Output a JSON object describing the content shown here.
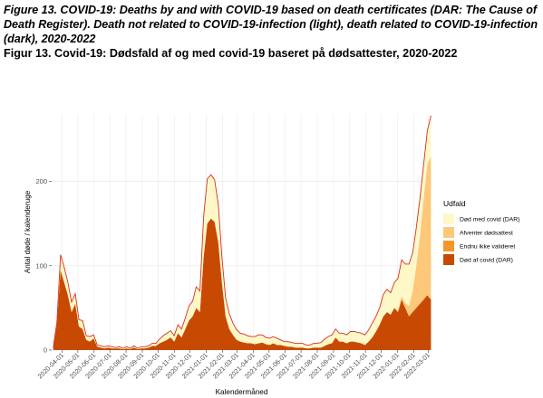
{
  "caption": {
    "english": "Figure 13. COVID-19: Deaths by and with COVID-19 based on death certificates (DAR: The Cause of Death Register). Death not related to COVID-19-infection (light), death related to COVID-19-infection (dark), 2020-2022",
    "danish": "Figur 13. Covid-19: Dødsfald af og med covid-19 baseret på dødsattester, 2020-2022"
  },
  "chart_data": {
    "type": "area",
    "stacked": true,
    "xlabel": "Kalendermåned",
    "ylabel": "Antal døde / kalenderuge",
    "ylim": [
      0,
      280
    ],
    "yticks": [
      0,
      100,
      200
    ],
    "grid": true,
    "legend_position": "right",
    "legend_title": "Udfald",
    "x_tick_labels": [
      "2020-04-01",
      "2020-05-01",
      "2020-06-01",
      "2020-07-01",
      "2020-08-01",
      "2020-09-01",
      "2020-10-01",
      "2020-11-01",
      "2020-12-01",
      "2021-01-01",
      "2021-02-01",
      "2021-03-01",
      "2021-04-01",
      "2021-05-01",
      "2021-06-01",
      "2021-07-01",
      "2021-08-01",
      "2021-09-01",
      "2021-10-01",
      "2021-11-01",
      "2021-12-01",
      "2022-01-01",
      "2022-02-01",
      "2022-03-01"
    ],
    "x": [
      "2020-03-15",
      "2020-03-22",
      "2020-03-29",
      "2020-04-05",
      "2020-04-12",
      "2020-04-19",
      "2020-04-26",
      "2020-05-03",
      "2020-05-10",
      "2020-05-17",
      "2020-05-24",
      "2020-05-31",
      "2020-06-07",
      "2020-06-14",
      "2020-06-21",
      "2020-06-28",
      "2020-07-05",
      "2020-07-12",
      "2020-07-19",
      "2020-07-26",
      "2020-08-02",
      "2020-08-09",
      "2020-08-16",
      "2020-08-23",
      "2020-08-30",
      "2020-09-06",
      "2020-09-13",
      "2020-09-20",
      "2020-09-27",
      "2020-10-04",
      "2020-10-11",
      "2020-10-18",
      "2020-10-25",
      "2020-11-01",
      "2020-11-08",
      "2020-11-15",
      "2020-11-22",
      "2020-11-29",
      "2020-12-06",
      "2020-12-13",
      "2020-12-20",
      "2020-12-27",
      "2021-01-03",
      "2021-01-10",
      "2021-01-17",
      "2021-01-24",
      "2021-01-31",
      "2021-02-07",
      "2021-02-14",
      "2021-02-21",
      "2021-02-28",
      "2021-03-07",
      "2021-03-14",
      "2021-03-21",
      "2021-03-28",
      "2021-04-04",
      "2021-04-11",
      "2021-04-18",
      "2021-04-25",
      "2021-05-02",
      "2021-05-09",
      "2021-05-16",
      "2021-05-23",
      "2021-05-30",
      "2021-06-06",
      "2021-06-13",
      "2021-06-20",
      "2021-06-27",
      "2021-07-04",
      "2021-07-11",
      "2021-07-18",
      "2021-07-25",
      "2021-08-01",
      "2021-08-08",
      "2021-08-15",
      "2021-08-22",
      "2021-08-29",
      "2021-09-05",
      "2021-09-12",
      "2021-09-19",
      "2021-09-26",
      "2021-10-03",
      "2021-10-10",
      "2021-10-17",
      "2021-10-24",
      "2021-10-31",
      "2021-11-07",
      "2021-11-14",
      "2021-11-21",
      "2021-11-28",
      "2021-12-05",
      "2021-12-12",
      "2021-12-19",
      "2021-12-26",
      "2022-01-02",
      "2022-01-09",
      "2022-01-16",
      "2022-01-23",
      "2022-01-30",
      "2022-02-06",
      "2022-02-13",
      "2022-02-20",
      "2022-02-27",
      "2022-03-06"
    ],
    "series": [
      {
        "name": "Død af covid (DAR)",
        "color": "#c84a02",
        "values": [
          3,
          30,
          95,
          80,
          65,
          45,
          55,
          28,
          25,
          12,
          10,
          14,
          4,
          3,
          2,
          3,
          2,
          2,
          2,
          1,
          2,
          1,
          3,
          1,
          2,
          2,
          3,
          5,
          5,
          8,
          10,
          12,
          15,
          10,
          20,
          15,
          25,
          35,
          40,
          50,
          45,
          110,
          150,
          156,
          152,
          128,
          80,
          40,
          25,
          18,
          12,
          10,
          9,
          8,
          8,
          7,
          8,
          9,
          7,
          6,
          8,
          6,
          6,
          5,
          4,
          4,
          3,
          3,
          3,
          2,
          2,
          3,
          3,
          3,
          5,
          7,
          8,
          15,
          10,
          10,
          8,
          10,
          10,
          9,
          8,
          6,
          10,
          15,
          22,
          30,
          40,
          45,
          42,
          50,
          45,
          60,
          50,
          40,
          45,
          50,
          55,
          60,
          65,
          60
        ]
      },
      {
        "name": "Endnu ikke valideret",
        "color": "#f4962a",
        "values": [
          0,
          0,
          0,
          0,
          0,
          0,
          0,
          0,
          0,
          0,
          0,
          0,
          0,
          0,
          0,
          0,
          0,
          0,
          0,
          0,
          0,
          0,
          0,
          0,
          0,
          0,
          0,
          0,
          0,
          0,
          0,
          0,
          0,
          0,
          0,
          0,
          0,
          0,
          0,
          0,
          0,
          0,
          0,
          0,
          0,
          0,
          0,
          0,
          0,
          0,
          0,
          0,
          0,
          0,
          0,
          0,
          0,
          0,
          0,
          0,
          0,
          0,
          0,
          0,
          0,
          0,
          0,
          0,
          0,
          0,
          0,
          0,
          0,
          0,
          0,
          0,
          0,
          0,
          0,
          0,
          0,
          0,
          0,
          0,
          0,
          0,
          0,
          0,
          0,
          0,
          0,
          0,
          0,
          0,
          0,
          0,
          0,
          0,
          0,
          0,
          0,
          0,
          0,
          0
        ]
      },
      {
        "name": "Afventer dødsattest",
        "color": "#fdc87a",
        "values": [
          0,
          0,
          0,
          0,
          0,
          0,
          0,
          0,
          0,
          0,
          0,
          0,
          0,
          0,
          0,
          0,
          0,
          0,
          0,
          0,
          0,
          0,
          0,
          0,
          0,
          0,
          0,
          0,
          0,
          0,
          0,
          0,
          0,
          0,
          0,
          0,
          0,
          0,
          0,
          0,
          0,
          0,
          0,
          0,
          0,
          0,
          0,
          0,
          0,
          0,
          0,
          0,
          0,
          0,
          0,
          0,
          0,
          0,
          0,
          0,
          0,
          0,
          0,
          0,
          0,
          0,
          0,
          0,
          0,
          0,
          0,
          0,
          0,
          0,
          0,
          0,
          0,
          0,
          0,
          0,
          0,
          0,
          0,
          0,
          0,
          0,
          0,
          0,
          0,
          0,
          0,
          0,
          0,
          0,
          2,
          4,
          6,
          12,
          25,
          50,
          80,
          120,
          155,
          170
        ]
      },
      {
        "name": "Død med covid (DAR)",
        "color": "#fef7c8",
        "values": [
          0,
          3,
          18,
          18,
          15,
          12,
          12,
          8,
          10,
          5,
          6,
          4,
          2,
          2,
          2,
          2,
          2,
          1,
          2,
          1,
          2,
          1,
          2,
          1,
          2,
          2,
          2,
          3,
          3,
          5,
          7,
          8,
          8,
          7,
          10,
          10,
          13,
          17,
          18,
          25,
          25,
          48,
          53,
          52,
          50,
          45,
          30,
          22,
          18,
          14,
          12,
          10,
          10,
          9,
          8,
          9,
          10,
          9,
          8,
          8,
          8,
          8,
          6,
          5,
          6,
          5,
          5,
          5,
          5,
          4,
          4,
          5,
          5,
          6,
          8,
          9,
          10,
          10,
          10,
          10,
          10,
          12,
          12,
          12,
          12,
          12,
          14,
          17,
          18,
          20,
          26,
          27,
          26,
          30,
          38,
          43,
          46,
          50,
          45,
          45,
          45,
          40,
          40,
          48
        ]
      }
    ],
    "total_line_color": "#d7301f"
  }
}
